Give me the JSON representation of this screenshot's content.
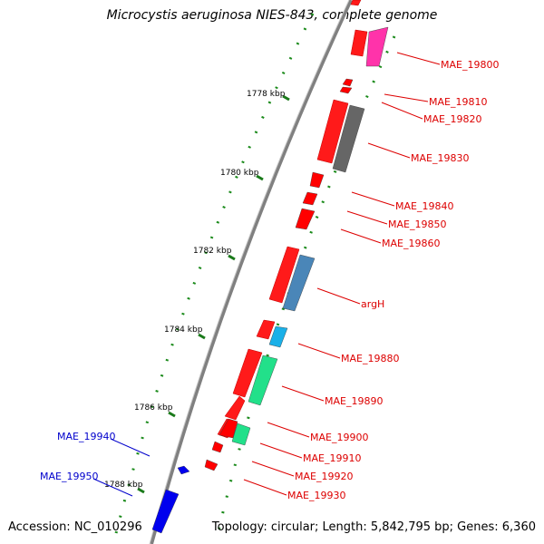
{
  "title": "Microcystis aeruginosa NIES-843, complete genome",
  "footer": {
    "accession": "Accession: NC_010296",
    "topology": "Topology: circular; Length: 5,842,795 bp; Genes: 6,360"
  },
  "ticks": [
    "1778 kbp",
    "1780 kbp",
    "1782 kbp",
    "1784 kbp",
    "1786 kbp",
    "1788 kbp"
  ],
  "genes": [
    {
      "label": "MAE_19800",
      "color": "#ff33aa",
      "strand": "minus"
    },
    {
      "label": "MAE_19810",
      "color": "#ff0000",
      "strand": "plus"
    },
    {
      "label": "MAE_19820",
      "color": "#ff0000",
      "strand": "plus"
    },
    {
      "label": "MAE_19830",
      "color": "#666666",
      "strand": "minus"
    },
    {
      "label": "MAE_19840",
      "color": "#ff0000",
      "strand": "plus"
    },
    {
      "label": "MAE_19850",
      "color": "#ff0000",
      "strand": "plus"
    },
    {
      "label": "MAE_19860",
      "color": "#ff0000",
      "strand": "plus"
    },
    {
      "label": "argH",
      "color": "#4a86b8",
      "strand": "minus"
    },
    {
      "label": "MAE_19880",
      "color": "#1ab0e8",
      "strand": "minus"
    },
    {
      "label": "MAE_19890",
      "color": "#22e08a",
      "strand": "minus"
    },
    {
      "label": "MAE_19900",
      "color": "#ff0000",
      "strand": "plus"
    },
    {
      "label": "MAE_19910",
      "color": "#22e08a",
      "strand": "minus"
    },
    {
      "label": "MAE_19920",
      "color": "#ff0000",
      "strand": "plus"
    },
    {
      "label": "MAE_19930",
      "color": "#ff0000",
      "strand": "plus"
    },
    {
      "label": "MAE_19940",
      "color": "#0000ee",
      "strand": "minus"
    },
    {
      "label": "MAE_19950",
      "color": "#0000ee",
      "strand": "minus"
    }
  ],
  "colors": {
    "backbone": "#808080",
    "tick": "#1a7a1a",
    "forward_label": "#dd0000",
    "reverse_label": "#0000cc"
  }
}
